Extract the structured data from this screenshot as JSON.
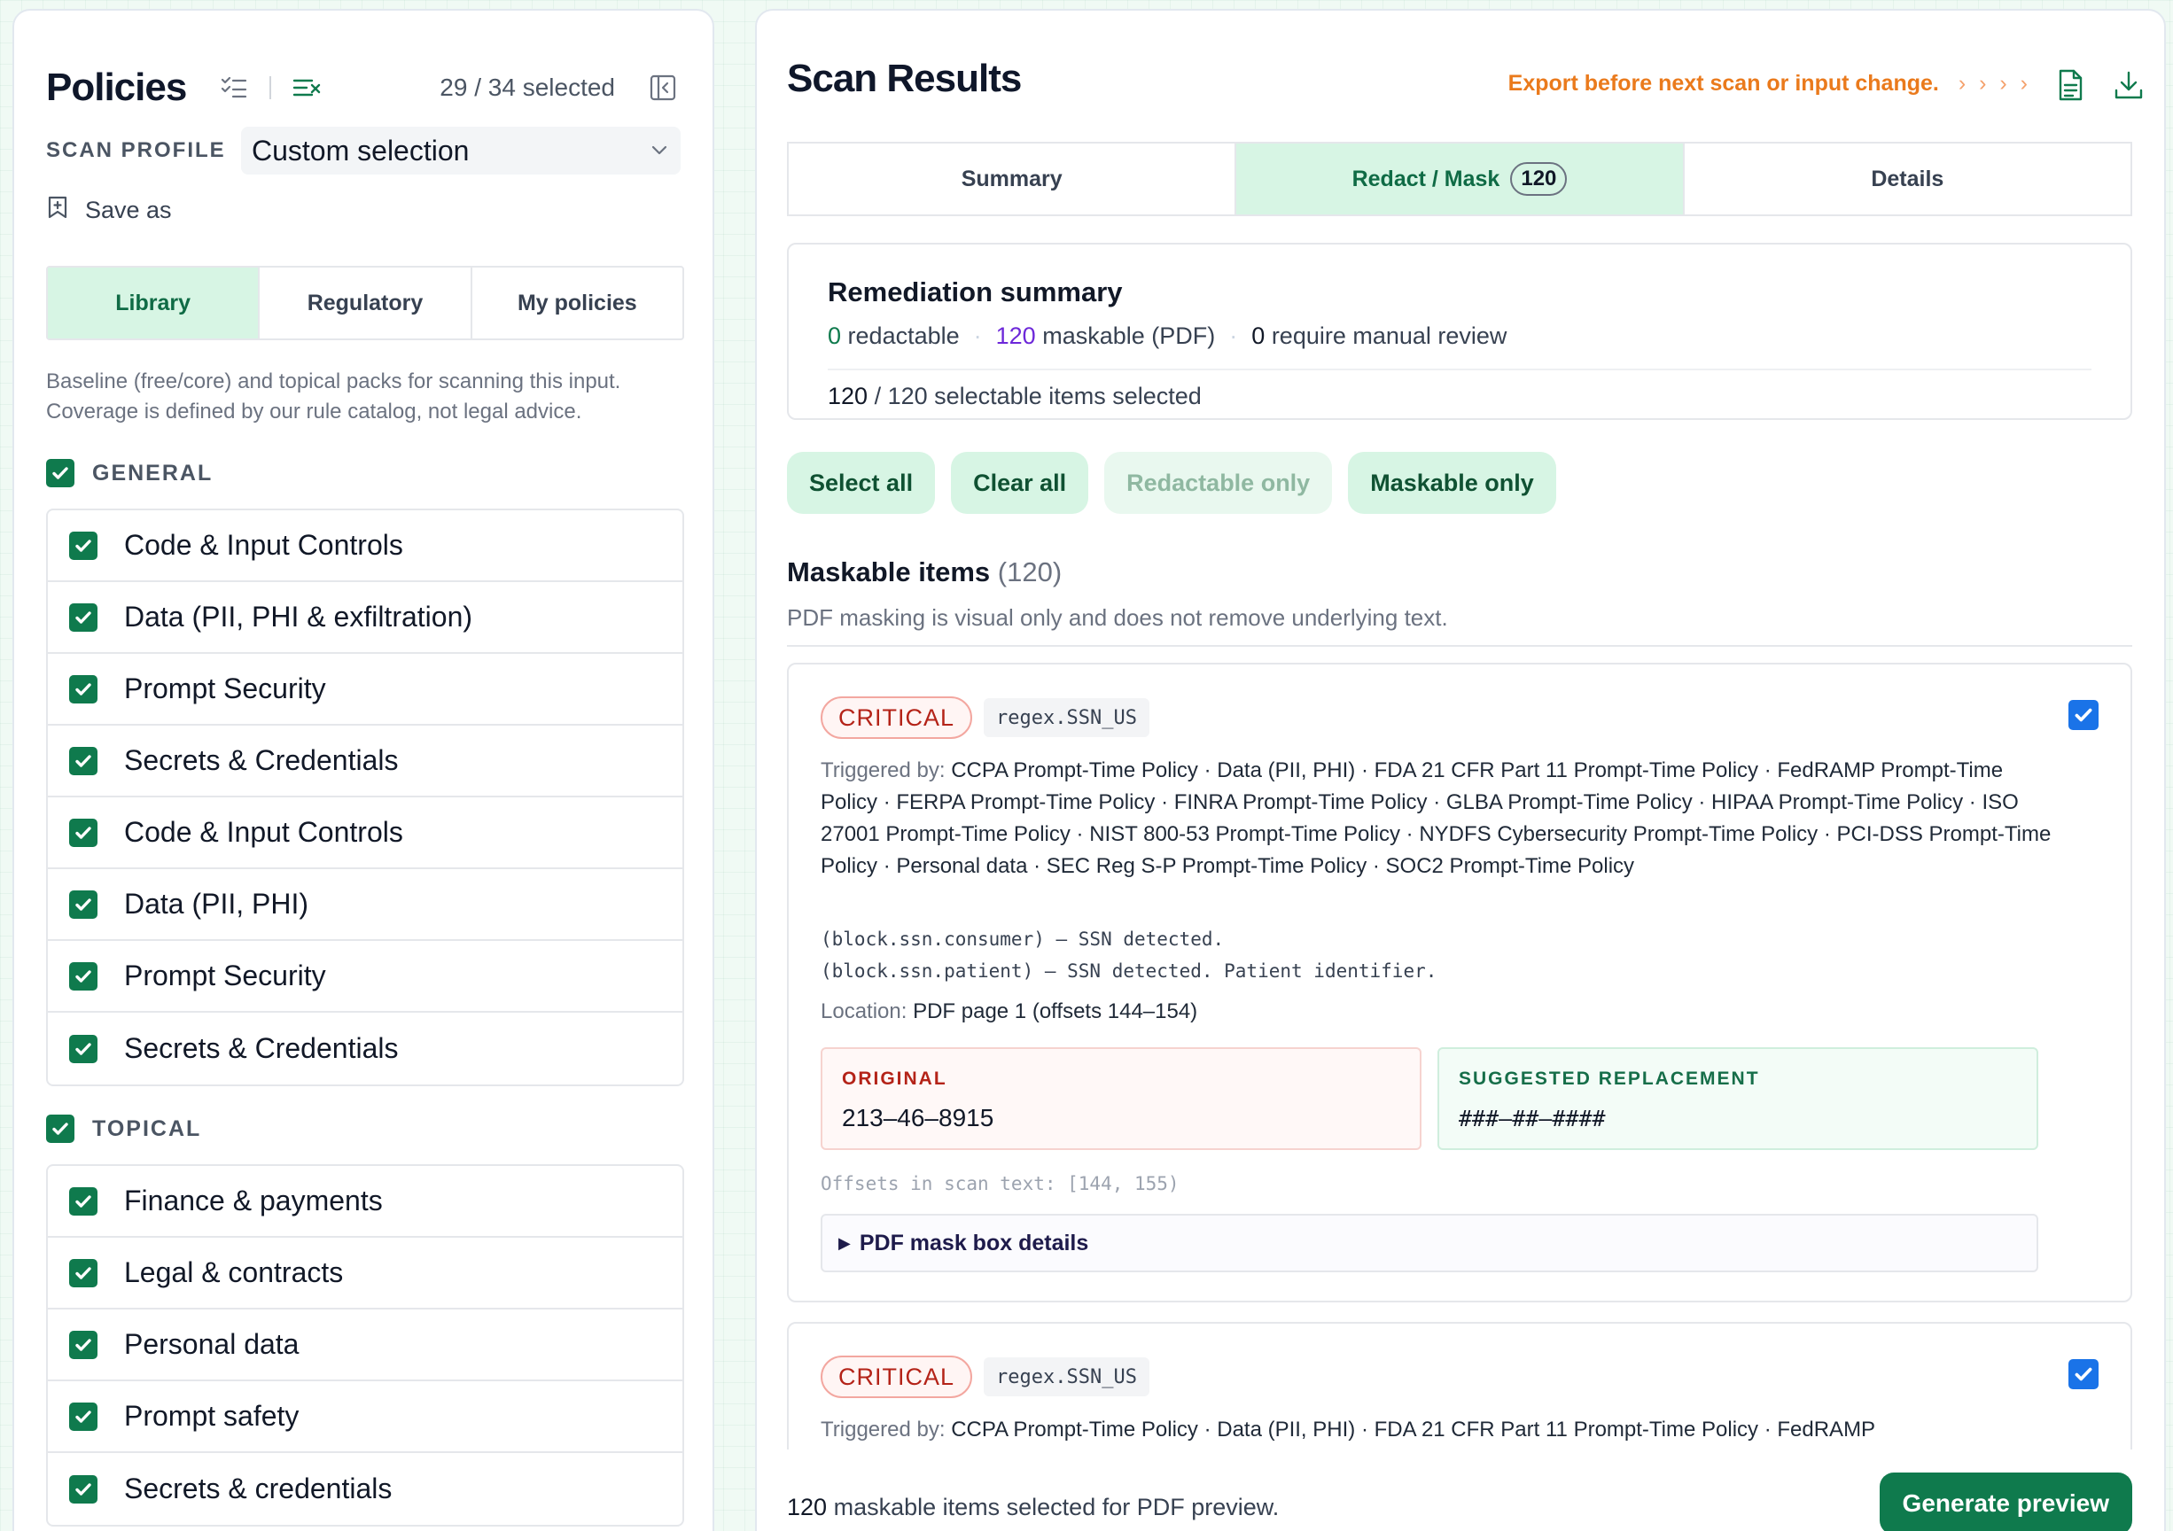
{
  "policies": {
    "title": "Policies",
    "selected_count": "29 / 34 selected",
    "scan_profile_label": "SCAN PROFILE",
    "scan_profile_value": "Custom selection",
    "save_as": "Save as",
    "tabs": [
      {
        "label": "Library",
        "active": true
      },
      {
        "label": "Regulatory",
        "active": false
      },
      {
        "label": "My policies",
        "active": false
      }
    ],
    "description": "Baseline (free/core) and topical packs for scanning this input. Coverage is defined by our rule catalog, not legal advice.",
    "groups": [
      {
        "label": "GENERAL",
        "checked": true,
        "items": [
          "Code & Input Controls",
          "Data (PII, PHI & exfiltration)",
          "Prompt Security",
          "Secrets & Credentials",
          "Code & Input Controls",
          "Data (PII, PHI)",
          "Prompt Security",
          "Secrets & Credentials"
        ]
      },
      {
        "label": "TOPICAL",
        "checked": true,
        "items": [
          "Finance & payments",
          "Legal & contracts",
          "Personal data",
          "Prompt safety",
          "Secrets & credentials"
        ]
      }
    ]
  },
  "results": {
    "title": "Scan Results",
    "export_warning": "Export before next scan or input change.",
    "export_arrows": "› › › ›",
    "tabs": [
      {
        "label": "Summary",
        "active": false,
        "count": ""
      },
      {
        "label": "Redact / Mask",
        "active": true,
        "count": "120"
      },
      {
        "label": "Details",
        "active": false,
        "count": ""
      }
    ],
    "remediation": {
      "title": "Remediation summary",
      "redactable_num": "0",
      "redactable_label": "redactable",
      "maskable_num": "120",
      "maskable_label": "maskable (PDF)",
      "manual_num": "0",
      "manual_label": "require manual review",
      "selected_num": "120",
      "selected_label": "/ 120 selectable items selected"
    },
    "buttons": [
      {
        "label": "Select all",
        "muted": false
      },
      {
        "label": "Clear all",
        "muted": false
      },
      {
        "label": "Redactable only",
        "muted": true
      },
      {
        "label": "Maskable only",
        "muted": false
      }
    ],
    "maskable_title": "Maskable items",
    "maskable_count": "(120)",
    "maskable_note": "PDF masking is visual only and does not remove underlying text.",
    "cards": [
      {
        "severity": "CRITICAL",
        "rule": "regex.SSN_US",
        "checked": true,
        "triggered_label": "Triggered by:",
        "triggered_value": "CCPA Prompt-Time Policy · Data (PII, PHI) · FDA 21 CFR Part 11 Prompt-Time Policy · FedRAMP Prompt-Time Policy · FERPA Prompt-Time Policy · FINRA Prompt-Time Policy · GLBA Prompt-Time Policy · HIPAA Prompt-Time Policy · ISO 27001 Prompt-Time Policy · NIST 800-53 Prompt-Time Policy · NYDFS Cybersecurity Prompt-Time Policy · PCI-DSS Prompt-Time Policy · Personal data · SEC Reg S-P Prompt-Time Policy · SOC2 Prompt-Time Policy",
        "rule_lines": "(block.ssn.consumer) — SSN detected.\n(block.ssn.patient) — SSN detected. Patient identifier.",
        "location_label": "Location:",
        "location_value": "PDF page 1 (offsets 144–154)",
        "original_label": "ORIGINAL",
        "original_value": "213–46–8915",
        "replacement_label": "SUGGESTED REPLACEMENT",
        "replacement_value": "###–##–####",
        "offsets": "Offsets in scan text: [144, 155)",
        "details_label": "PDF mask box details"
      },
      {
        "severity": "CRITICAL",
        "rule": "regex.SSN_US",
        "checked": true,
        "triggered_label": "Triggered by:",
        "triggered_value": "CCPA Prompt-Time Policy · Data (PII, PHI) · FDA 21 CFR Part 11 Prompt-Time Policy · FedRAMP"
      }
    ],
    "footer": {
      "count": "120",
      "text": "maskable items selected for PDF preview.",
      "button": "Generate preview"
    }
  }
}
